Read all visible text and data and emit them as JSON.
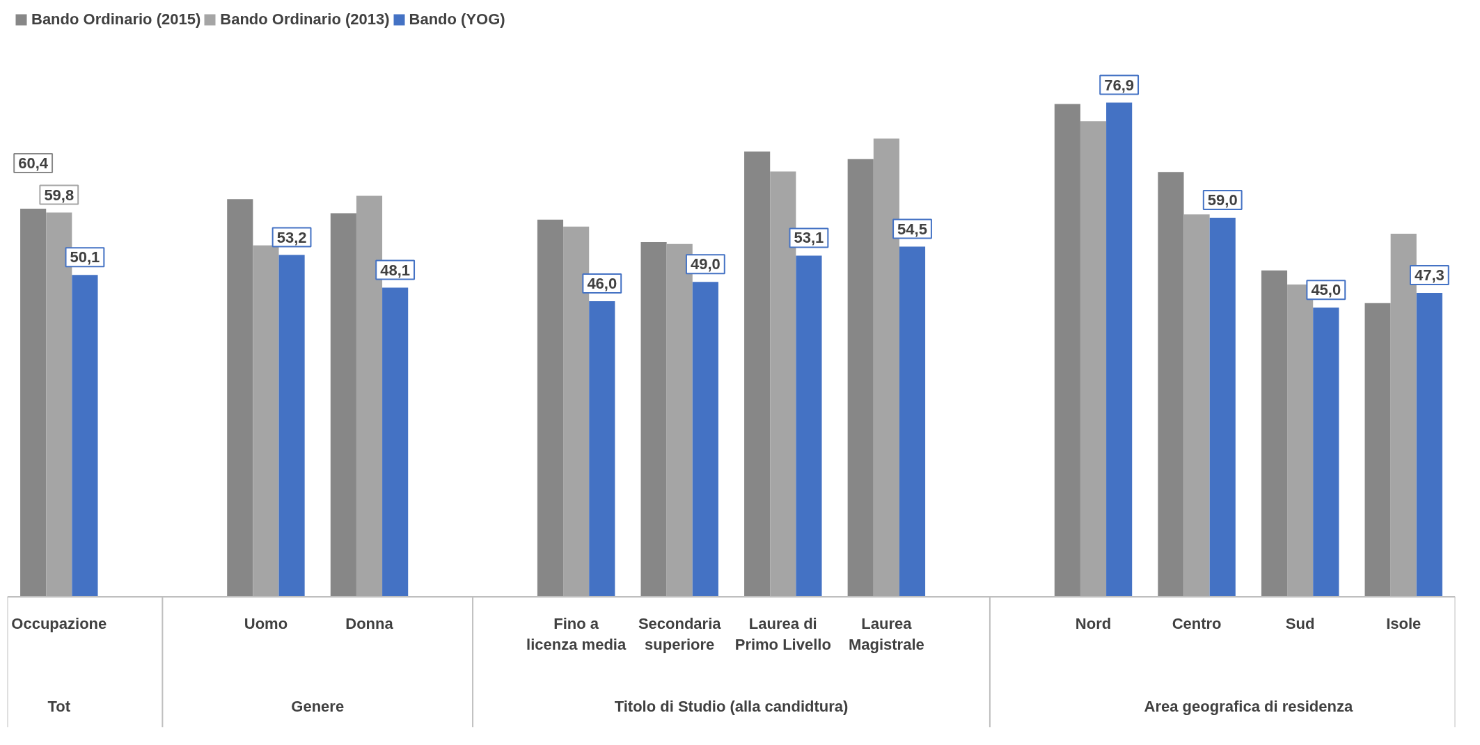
{
  "chart_data": {
    "type": "bar",
    "categories": [
      "Occupazione",
      null,
      "Uomo",
      "Donna",
      null,
      "Fino a licenza media",
      "Secondaria superiore",
      "Laurea di Primo Livello",
      "Laurea Magistrale",
      null,
      "Nord",
      "Centro",
      "Sud",
      "Isole"
    ],
    "series": [
      {
        "name": "Bando Ordinario (2015)",
        "color": "#878787",
        "values": [
          60.4,
          null,
          61.9,
          59.7,
          null,
          58.7,
          55.2,
          69.3,
          68.1,
          null,
          76.7,
          66.1,
          50.8,
          45.7
        ],
        "value_labels": [
          "60,4",
          null,
          null,
          null,
          null,
          null,
          null,
          null,
          null,
          null,
          null,
          null,
          null,
          null
        ]
      },
      {
        "name": "Bando Ordinario (2013)",
        "color": "#a5a5a5",
        "values": [
          59.8,
          null,
          54.7,
          62.4,
          null,
          57.6,
          54.9,
          66.2,
          71.3,
          null,
          74.0,
          59.5,
          48.6,
          56.5
        ],
        "value_labels": [
          "59,8",
          null,
          null,
          null,
          null,
          null,
          null,
          null,
          null,
          null,
          null,
          null,
          null,
          null
        ]
      },
      {
        "name": "Bando (YOG)",
        "color": "#4472c4",
        "values": [
          50.1,
          null,
          53.2,
          48.1,
          null,
          46.0,
          49.0,
          53.1,
          54.5,
          null,
          76.9,
          59.0,
          45.0,
          47.3
        ],
        "value_labels": [
          "50,1",
          null,
          "53,2",
          "48,1",
          null,
          "46,0",
          "49,0",
          "53,1",
          "54,5",
          null,
          "76,9",
          "59,0",
          "45,0",
          "47,3"
        ]
      }
    ],
    "annotations": [
      "Tot",
      "Genere",
      "Titolo di Studio (alla candidtura)",
      "Area geografica di residenza"
    ],
    "tick_labels": "x",
    "legend": "top left"
  }
}
